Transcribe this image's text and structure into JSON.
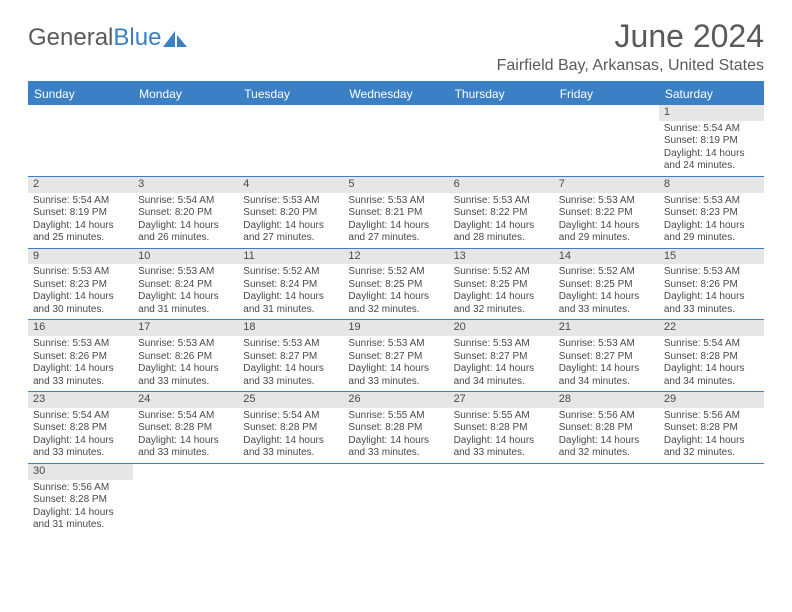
{
  "logo": {
    "textA": "General",
    "textB": "Blue"
  },
  "header": {
    "monthTitle": "June 2024",
    "location": "Fairfield Bay, Arkansas, United States"
  },
  "colors": {
    "accent": "#3b7fc4",
    "headerText": "#5a5a5a",
    "dayNumBg": "#e6e6e6",
    "bodyText": "#4a4a4a",
    "white": "#ffffff"
  },
  "weekdays": [
    "Sunday",
    "Monday",
    "Tuesday",
    "Wednesday",
    "Thursday",
    "Friday",
    "Saturday"
  ],
  "weeks": [
    [
      {
        "empty": true
      },
      {
        "empty": true
      },
      {
        "empty": true
      },
      {
        "empty": true
      },
      {
        "empty": true
      },
      {
        "empty": true
      },
      {
        "num": "1",
        "sunrise": "Sunrise: 5:54 AM",
        "sunset": "Sunset: 8:19 PM",
        "d1": "Daylight: 14 hours",
        "d2": "and 24 minutes."
      }
    ],
    [
      {
        "num": "2",
        "sunrise": "Sunrise: 5:54 AM",
        "sunset": "Sunset: 8:19 PM",
        "d1": "Daylight: 14 hours",
        "d2": "and 25 minutes."
      },
      {
        "num": "3",
        "sunrise": "Sunrise: 5:54 AM",
        "sunset": "Sunset: 8:20 PM",
        "d1": "Daylight: 14 hours",
        "d2": "and 26 minutes."
      },
      {
        "num": "4",
        "sunrise": "Sunrise: 5:53 AM",
        "sunset": "Sunset: 8:20 PM",
        "d1": "Daylight: 14 hours",
        "d2": "and 27 minutes."
      },
      {
        "num": "5",
        "sunrise": "Sunrise: 5:53 AM",
        "sunset": "Sunset: 8:21 PM",
        "d1": "Daylight: 14 hours",
        "d2": "and 27 minutes."
      },
      {
        "num": "6",
        "sunrise": "Sunrise: 5:53 AM",
        "sunset": "Sunset: 8:22 PM",
        "d1": "Daylight: 14 hours",
        "d2": "and 28 minutes."
      },
      {
        "num": "7",
        "sunrise": "Sunrise: 5:53 AM",
        "sunset": "Sunset: 8:22 PM",
        "d1": "Daylight: 14 hours",
        "d2": "and 29 minutes."
      },
      {
        "num": "8",
        "sunrise": "Sunrise: 5:53 AM",
        "sunset": "Sunset: 8:23 PM",
        "d1": "Daylight: 14 hours",
        "d2": "and 29 minutes."
      }
    ],
    [
      {
        "num": "9",
        "sunrise": "Sunrise: 5:53 AM",
        "sunset": "Sunset: 8:23 PM",
        "d1": "Daylight: 14 hours",
        "d2": "and 30 minutes."
      },
      {
        "num": "10",
        "sunrise": "Sunrise: 5:53 AM",
        "sunset": "Sunset: 8:24 PM",
        "d1": "Daylight: 14 hours",
        "d2": "and 31 minutes."
      },
      {
        "num": "11",
        "sunrise": "Sunrise: 5:52 AM",
        "sunset": "Sunset: 8:24 PM",
        "d1": "Daylight: 14 hours",
        "d2": "and 31 minutes."
      },
      {
        "num": "12",
        "sunrise": "Sunrise: 5:52 AM",
        "sunset": "Sunset: 8:25 PM",
        "d1": "Daylight: 14 hours",
        "d2": "and 32 minutes."
      },
      {
        "num": "13",
        "sunrise": "Sunrise: 5:52 AM",
        "sunset": "Sunset: 8:25 PM",
        "d1": "Daylight: 14 hours",
        "d2": "and 32 minutes."
      },
      {
        "num": "14",
        "sunrise": "Sunrise: 5:52 AM",
        "sunset": "Sunset: 8:25 PM",
        "d1": "Daylight: 14 hours",
        "d2": "and 33 minutes."
      },
      {
        "num": "15",
        "sunrise": "Sunrise: 5:53 AM",
        "sunset": "Sunset: 8:26 PM",
        "d1": "Daylight: 14 hours",
        "d2": "and 33 minutes."
      }
    ],
    [
      {
        "num": "16",
        "sunrise": "Sunrise: 5:53 AM",
        "sunset": "Sunset: 8:26 PM",
        "d1": "Daylight: 14 hours",
        "d2": "and 33 minutes."
      },
      {
        "num": "17",
        "sunrise": "Sunrise: 5:53 AM",
        "sunset": "Sunset: 8:26 PM",
        "d1": "Daylight: 14 hours",
        "d2": "and 33 minutes."
      },
      {
        "num": "18",
        "sunrise": "Sunrise: 5:53 AM",
        "sunset": "Sunset: 8:27 PM",
        "d1": "Daylight: 14 hours",
        "d2": "and 33 minutes."
      },
      {
        "num": "19",
        "sunrise": "Sunrise: 5:53 AM",
        "sunset": "Sunset: 8:27 PM",
        "d1": "Daylight: 14 hours",
        "d2": "and 33 minutes."
      },
      {
        "num": "20",
        "sunrise": "Sunrise: 5:53 AM",
        "sunset": "Sunset: 8:27 PM",
        "d1": "Daylight: 14 hours",
        "d2": "and 34 minutes."
      },
      {
        "num": "21",
        "sunrise": "Sunrise: 5:53 AM",
        "sunset": "Sunset: 8:27 PM",
        "d1": "Daylight: 14 hours",
        "d2": "and 34 minutes."
      },
      {
        "num": "22",
        "sunrise": "Sunrise: 5:54 AM",
        "sunset": "Sunset: 8:28 PM",
        "d1": "Daylight: 14 hours",
        "d2": "and 34 minutes."
      }
    ],
    [
      {
        "num": "23",
        "sunrise": "Sunrise: 5:54 AM",
        "sunset": "Sunset: 8:28 PM",
        "d1": "Daylight: 14 hours",
        "d2": "and 33 minutes."
      },
      {
        "num": "24",
        "sunrise": "Sunrise: 5:54 AM",
        "sunset": "Sunset: 8:28 PM",
        "d1": "Daylight: 14 hours",
        "d2": "and 33 minutes."
      },
      {
        "num": "25",
        "sunrise": "Sunrise: 5:54 AM",
        "sunset": "Sunset: 8:28 PM",
        "d1": "Daylight: 14 hours",
        "d2": "and 33 minutes."
      },
      {
        "num": "26",
        "sunrise": "Sunrise: 5:55 AM",
        "sunset": "Sunset: 8:28 PM",
        "d1": "Daylight: 14 hours",
        "d2": "and 33 minutes."
      },
      {
        "num": "27",
        "sunrise": "Sunrise: 5:55 AM",
        "sunset": "Sunset: 8:28 PM",
        "d1": "Daylight: 14 hours",
        "d2": "and 33 minutes."
      },
      {
        "num": "28",
        "sunrise": "Sunrise: 5:56 AM",
        "sunset": "Sunset: 8:28 PM",
        "d1": "Daylight: 14 hours",
        "d2": "and 32 minutes."
      },
      {
        "num": "29",
        "sunrise": "Sunrise: 5:56 AM",
        "sunset": "Sunset: 8:28 PM",
        "d1": "Daylight: 14 hours",
        "d2": "and 32 minutes."
      }
    ],
    [
      {
        "num": "30",
        "sunrise": "Sunrise: 5:56 AM",
        "sunset": "Sunset: 8:28 PM",
        "d1": "Daylight: 14 hours",
        "d2": "and 31 minutes."
      },
      {
        "empty": true
      },
      {
        "empty": true
      },
      {
        "empty": true
      },
      {
        "empty": true
      },
      {
        "empty": true
      },
      {
        "empty": true
      }
    ]
  ]
}
